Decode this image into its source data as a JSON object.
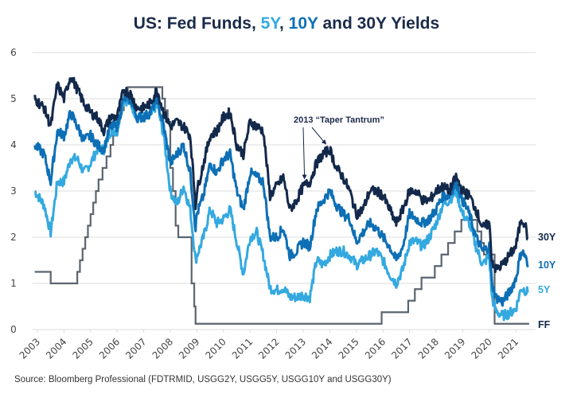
{
  "chart_data": {
    "type": "line",
    "title": {
      "prefix": "US: Fed Funds, ",
      "part_5y": "5Y",
      "sep": ", ",
      "part_10y": "10Y",
      "suffix": " and 30Y Yields"
    },
    "xlabel": "",
    "ylabel": "",
    "ylim": [
      0,
      6
    ],
    "xlim": [
      2002.9,
      2021.5
    ],
    "yticks": [
      "0",
      "1",
      "2",
      "3",
      "4",
      "5",
      "6"
    ],
    "xticks": [
      "2003",
      "2004",
      "2005",
      "2006",
      "2007",
      "2008",
      "2009",
      "2010",
      "2011",
      "2012",
      "2013",
      "2014",
      "2015",
      "2016",
      "2017",
      "2018",
      "2019",
      "2020",
      "2021"
    ],
    "grid": "horizontal",
    "colors": {
      "30Y": "#13294b",
      "10Y": "#0d6fb5",
      "5Y": "#34a9e0",
      "FF": "#5a6570"
    },
    "series": [
      {
        "name": "30Y",
        "x": [
          2002.9,
          2003.25,
          2003.5,
          2003.75,
          2004.0,
          2004.25,
          2004.5,
          2004.75,
          2005.0,
          2005.25,
          2005.5,
          2005.75,
          2006.0,
          2006.25,
          2006.5,
          2006.75,
          2007.0,
          2007.25,
          2007.5,
          2007.75,
          2008.0,
          2008.25,
          2008.5,
          2008.75,
          2008.95,
          2009.0,
          2009.25,
          2009.5,
          2009.75,
          2010.0,
          2010.25,
          2010.5,
          2010.75,
          2011.0,
          2011.25,
          2011.5,
          2011.75,
          2012.0,
          2012.25,
          2012.5,
          2012.75,
          2013.0,
          2013.25,
          2013.5,
          2013.75,
          2014.0,
          2014.25,
          2014.5,
          2014.75,
          2015.0,
          2015.25,
          2015.5,
          2015.75,
          2016.0,
          2016.25,
          2016.5,
          2016.75,
          2017.0,
          2017.25,
          2017.5,
          2017.75,
          2018.0,
          2018.25,
          2018.5,
          2018.75,
          2019.0,
          2019.25,
          2019.5,
          2019.75,
          2020.0,
          2020.1,
          2020.25,
          2020.5,
          2020.75,
          2021.0,
          2021.2,
          2021.35,
          2021.45
        ],
        "values": [
          5.0,
          4.8,
          4.4,
          5.3,
          5.0,
          5.5,
          5.2,
          4.9,
          4.7,
          4.6,
          4.3,
          4.6,
          4.6,
          5.2,
          5.1,
          4.8,
          4.8,
          4.9,
          5.2,
          4.7,
          4.4,
          4.5,
          4.4,
          4.2,
          2.7,
          3.0,
          3.6,
          4.2,
          4.3,
          4.6,
          4.7,
          4.0,
          3.8,
          4.5,
          4.4,
          4.3,
          2.9,
          3.1,
          3.3,
          2.6,
          2.8,
          3.1,
          3.2,
          3.6,
          3.8,
          3.9,
          3.5,
          3.3,
          3.0,
          2.5,
          2.6,
          3.0,
          3.0,
          2.9,
          2.6,
          2.3,
          2.6,
          3.0,
          3.0,
          2.8,
          2.8,
          3.0,
          3.1,
          3.0,
          3.3,
          3.0,
          2.9,
          2.6,
          2.2,
          2.3,
          1.5,
          1.3,
          1.4,
          1.6,
          1.8,
          2.4,
          2.3,
          1.95
        ]
      },
      {
        "name": "10Y",
        "x": [
          2002.9,
          2003.25,
          2003.5,
          2003.75,
          2004.0,
          2004.25,
          2004.5,
          2004.75,
          2005.0,
          2005.25,
          2005.5,
          2005.75,
          2006.0,
          2006.25,
          2006.5,
          2006.75,
          2007.0,
          2007.25,
          2007.5,
          2007.75,
          2008.0,
          2008.25,
          2008.5,
          2008.75,
          2008.95,
          2009.0,
          2009.25,
          2009.5,
          2009.75,
          2010.0,
          2010.25,
          2010.5,
          2010.75,
          2011.0,
          2011.25,
          2011.5,
          2011.75,
          2012.0,
          2012.25,
          2012.5,
          2012.75,
          2013.0,
          2013.25,
          2013.5,
          2013.75,
          2014.0,
          2014.25,
          2014.5,
          2014.75,
          2015.0,
          2015.25,
          2015.5,
          2015.75,
          2016.0,
          2016.25,
          2016.5,
          2016.75,
          2017.0,
          2017.25,
          2017.5,
          2017.75,
          2018.0,
          2018.25,
          2018.5,
          2018.75,
          2019.0,
          2019.25,
          2019.5,
          2019.75,
          2020.0,
          2020.1,
          2020.25,
          2020.5,
          2020.75,
          2021.0,
          2021.2,
          2021.35,
          2021.45
        ],
        "values": [
          4.0,
          3.8,
          3.2,
          4.3,
          4.2,
          4.7,
          4.4,
          4.1,
          4.2,
          4.0,
          3.9,
          4.4,
          4.4,
          5.0,
          5.0,
          4.6,
          4.6,
          4.7,
          5.0,
          4.4,
          3.6,
          3.8,
          4.0,
          3.4,
          2.2,
          2.5,
          2.9,
          3.6,
          3.4,
          3.7,
          3.8,
          3.0,
          2.6,
          3.4,
          3.3,
          3.2,
          2.0,
          2.0,
          2.2,
          1.6,
          1.7,
          1.9,
          1.8,
          2.6,
          2.8,
          3.0,
          2.7,
          2.5,
          2.4,
          1.9,
          2.1,
          2.3,
          2.2,
          2.0,
          1.8,
          1.5,
          1.8,
          2.5,
          2.4,
          2.3,
          2.4,
          2.6,
          2.9,
          2.9,
          3.2,
          2.8,
          2.5,
          2.0,
          1.7,
          1.8,
          1.0,
          0.7,
          0.6,
          0.8,
          1.1,
          1.7,
          1.6,
          1.35
        ]
      },
      {
        "name": "5Y",
        "x": [
          2002.9,
          2003.25,
          2003.5,
          2003.75,
          2004.0,
          2004.25,
          2004.5,
          2004.75,
          2005.0,
          2005.25,
          2005.5,
          2005.75,
          2006.0,
          2006.25,
          2006.5,
          2006.75,
          2007.0,
          2007.25,
          2007.5,
          2007.75,
          2008.0,
          2008.25,
          2008.5,
          2008.75,
          2008.95,
          2009.0,
          2009.25,
          2009.5,
          2009.75,
          2010.0,
          2010.25,
          2010.5,
          2010.75,
          2011.0,
          2011.25,
          2011.5,
          2011.75,
          2012.0,
          2012.25,
          2012.5,
          2012.75,
          2013.0,
          2013.25,
          2013.5,
          2013.75,
          2014.0,
          2014.25,
          2014.5,
          2014.75,
          2015.0,
          2015.25,
          2015.5,
          2015.75,
          2016.0,
          2016.25,
          2016.5,
          2016.75,
          2017.0,
          2017.25,
          2017.5,
          2017.75,
          2018.0,
          2018.25,
          2018.5,
          2018.75,
          2019.0,
          2019.25,
          2019.5,
          2019.75,
          2020.0,
          2020.1,
          2020.25,
          2020.5,
          2020.75,
          2021.0,
          2021.2,
          2021.35,
          2021.45
        ],
        "values": [
          3.0,
          2.7,
          2.1,
          3.2,
          3.2,
          3.7,
          3.7,
          3.4,
          3.6,
          3.9,
          3.9,
          4.3,
          4.3,
          5.0,
          4.9,
          4.6,
          4.6,
          4.6,
          4.9,
          4.2,
          3.0,
          2.7,
          3.1,
          2.6,
          1.5,
          1.6,
          2.0,
          2.6,
          2.3,
          2.4,
          2.6,
          1.9,
          1.2,
          2.0,
          2.1,
          1.6,
          0.9,
          0.85,
          0.9,
          0.7,
          0.7,
          0.75,
          0.7,
          1.5,
          1.4,
          1.6,
          1.7,
          1.7,
          1.6,
          1.4,
          1.5,
          1.6,
          1.7,
          1.5,
          1.2,
          1.0,
          1.3,
          1.9,
          1.9,
          1.8,
          2.0,
          2.3,
          2.7,
          2.8,
          3.0,
          2.5,
          2.3,
          1.8,
          1.4,
          1.6,
          0.7,
          0.4,
          0.3,
          0.35,
          0.45,
          0.9,
          0.85,
          0.8
        ]
      },
      {
        "name": "FF",
        "step": true,
        "x": [
          2002.9,
          2003.5,
          2004.5,
          2004.6,
          2004.7,
          2004.8,
          2004.9,
          2005.0,
          2005.1,
          2005.2,
          2005.3,
          2005.45,
          2005.6,
          2005.75,
          2005.85,
          2006.0,
          2006.1,
          2006.25,
          2006.4,
          2006.5,
          2007.7,
          2007.8,
          2007.9,
          2008.0,
          2008.1,
          2008.2,
          2008.3,
          2008.8,
          2008.9,
          2008.95,
          2015.95,
          2016.95,
          2017.2,
          2017.45,
          2017.95,
          2018.2,
          2018.45,
          2018.7,
          2018.95,
          2019.55,
          2019.7,
          2019.8,
          2020.2,
          2021.5
        ],
        "values": [
          1.25,
          1.0,
          1.25,
          1.5,
          1.75,
          2.0,
          2.25,
          2.5,
          2.75,
          3.0,
          3.25,
          3.5,
          3.75,
          4.0,
          4.25,
          4.5,
          4.75,
          5.0,
          5.25,
          5.25,
          5.0,
          4.75,
          4.5,
          3.5,
          3.0,
          2.25,
          2.0,
          1.0,
          0.5,
          0.125,
          0.375,
          0.625,
          0.875,
          1.125,
          1.375,
          1.625,
          1.875,
          2.125,
          2.375,
          2.125,
          1.875,
          1.625,
          0.125,
          0.125
        ]
      }
    ],
    "series_labels": [
      "30Y",
      "10Y",
      "5Y",
      "FF"
    ],
    "annotation": {
      "text": "2013 “Taper Tantrum”",
      "points_to": [
        [
          2013.05,
          3.2
        ],
        [
          2013.85,
          3.95
        ]
      ]
    }
  },
  "source": "Source: Bloomberg Professional (FDTRMID, USGG2Y, USGG5Y, USGG10Y and USGG30Y)"
}
